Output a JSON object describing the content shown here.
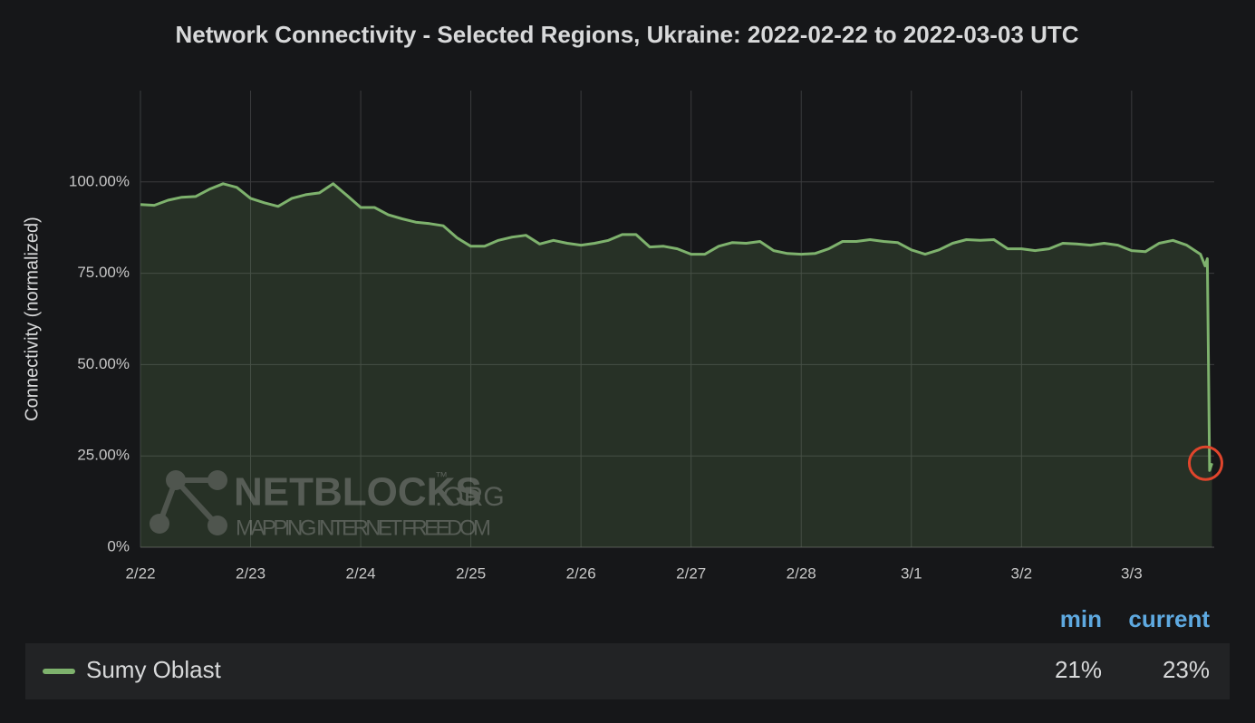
{
  "chart_data": {
    "type": "line",
    "title": "Network Connectivity - Selected Regions, Ukraine: 2022-02-22 to 2022-03-03 UTC",
    "y_label": "Connectivity (normalized)",
    "x": [
      "2022-02-22T00:00",
      "2022-02-22T03:00",
      "2022-02-22T06:00",
      "2022-02-22T09:00",
      "2022-02-22T12:00",
      "2022-02-22T15:00",
      "2022-02-22T18:00",
      "2022-02-22T21:00",
      "2022-02-23T00:00",
      "2022-02-23T03:00",
      "2022-02-23T06:00",
      "2022-02-23T09:00",
      "2022-02-23T12:00",
      "2022-02-23T15:00",
      "2022-02-23T18:00",
      "2022-02-23T21:00",
      "2022-02-24T00:00",
      "2022-02-24T03:00",
      "2022-02-24T06:00",
      "2022-02-24T09:00",
      "2022-02-24T12:00",
      "2022-02-24T15:00",
      "2022-02-24T18:00",
      "2022-02-24T21:00",
      "2022-02-25T00:00",
      "2022-02-25T03:00",
      "2022-02-25T06:00",
      "2022-02-25T09:00",
      "2022-02-25T12:00",
      "2022-02-25T15:00",
      "2022-02-25T18:00",
      "2022-02-25T21:00",
      "2022-02-26T00:00",
      "2022-02-26T03:00",
      "2022-02-26T06:00",
      "2022-02-26T09:00",
      "2022-02-26T12:00",
      "2022-02-26T15:00",
      "2022-02-26T18:00",
      "2022-02-26T21:00",
      "2022-02-27T00:00",
      "2022-02-27T03:00",
      "2022-02-27T06:00",
      "2022-02-27T09:00",
      "2022-02-27T12:00",
      "2022-02-27T15:00",
      "2022-02-27T18:00",
      "2022-02-27T21:00",
      "2022-02-28T00:00",
      "2022-02-28T03:00",
      "2022-02-28T06:00",
      "2022-02-28T09:00",
      "2022-02-28T12:00",
      "2022-02-28T15:00",
      "2022-02-28T18:00",
      "2022-02-28T21:00",
      "2022-03-01T00:00",
      "2022-03-01T03:00",
      "2022-03-01T06:00",
      "2022-03-01T09:00",
      "2022-03-01T12:00",
      "2022-03-01T15:00",
      "2022-03-01T18:00",
      "2022-03-01T21:00",
      "2022-03-02T00:00",
      "2022-03-02T03:00",
      "2022-03-02T06:00",
      "2022-03-02T09:00",
      "2022-03-02T12:00",
      "2022-03-02T15:00",
      "2022-03-02T18:00",
      "2022-03-02T21:00",
      "2022-03-03T00:00",
      "2022-03-03T03:00",
      "2022-03-03T06:00",
      "2022-03-03T09:00",
      "2022-03-03T12:00",
      "2022-03-03T15:00",
      "2022-03-03T16:00",
      "2022-03-03T16:30",
      "2022-03-03T17:00",
      "2022-03-03T17:30"
    ],
    "series": [
      {
        "name": "Sumy Oblast",
        "color": "#7eb26d",
        "values": [
          93.8,
          93.6,
          95,
          95.8,
          96,
          98,
          99.5,
          98.5,
          95.5,
          94.3,
          93.3,
          95.5,
          96.5,
          97,
          99.5,
          96.3,
          93,
          93,
          91,
          89.9,
          89,
          88.6,
          88,
          84.7,
          82.4,
          82.4,
          84,
          84.9,
          85.4,
          83,
          84,
          83.2,
          82.7,
          83.2,
          84,
          85.6,
          85.6,
          82.2,
          82.4,
          81.7,
          80.2,
          80.2,
          82.4,
          83.4,
          83.2,
          83.7,
          81.2,
          80.4,
          80.2,
          80.4,
          81.7,
          83.7,
          83.7,
          84.2,
          83.7,
          83.4,
          81.4,
          80.2,
          81.4,
          83.2,
          84.2,
          84,
          84.2,
          81.7,
          81.7,
          81.2,
          81.7,
          83.2,
          83,
          82.7,
          83.2,
          82.7,
          81.2,
          80.9,
          83.2,
          84,
          82.7,
          80.2,
          77,
          79,
          21,
          23
        ]
      }
    ],
    "xlim": [
      "2022-02-22T00:00",
      "2022-03-03T18:00"
    ],
    "xticks": [
      {
        "value": "2022-02-22T00:00",
        "label": "2/22"
      },
      {
        "value": "2022-02-23T00:00",
        "label": "2/23"
      },
      {
        "value": "2022-02-24T00:00",
        "label": "2/24"
      },
      {
        "value": "2022-02-25T00:00",
        "label": "2/25"
      },
      {
        "value": "2022-02-26T00:00",
        "label": "2/26"
      },
      {
        "value": "2022-02-27T00:00",
        "label": "2/27"
      },
      {
        "value": "2022-02-28T00:00",
        "label": "2/28"
      },
      {
        "value": "2022-03-01T00:00",
        "label": "3/1"
      },
      {
        "value": "2022-03-02T00:00",
        "label": "3/2"
      },
      {
        "value": "2022-03-03T00:00",
        "label": "3/3"
      }
    ],
    "ylim": [
      0,
      125
    ],
    "yticks": [
      {
        "value": 0,
        "label": "0%"
      },
      {
        "value": 25,
        "label": "25.00%"
      },
      {
        "value": 50,
        "label": "50.00%"
      },
      {
        "value": 75,
        "label": "75.00%"
      },
      {
        "value": 100,
        "label": "100.00%"
      }
    ],
    "grid": true,
    "legend_stats": {
      "headers": [
        "min",
        "current"
      ],
      "values": [
        21,
        23
      ],
      "value_labels": [
        "21%",
        "23%"
      ]
    },
    "watermark": {
      "name": "NETBLOCKS",
      "mark": "™",
      "domain": ".ORG",
      "tagline": "MAPPING INTERNET FREEDOM"
    }
  }
}
